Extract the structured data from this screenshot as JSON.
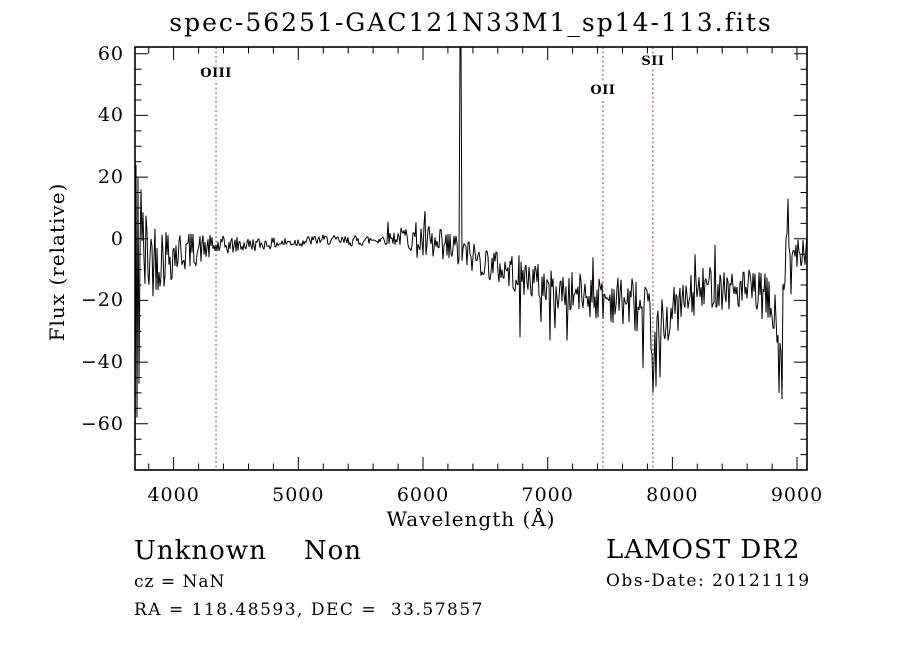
{
  "plot": {
    "title": "spec-56251-GAC121N33M1_sp14-113.fits",
    "xlabel": "Wavelength (Å)",
    "ylabel": "Flux (relative)",
    "background_color": "#ffffff",
    "axis_color": "#000000",
    "trace_color": "#000000",
    "marker_line_color": "#8a4545"
  },
  "footer": {
    "classification": "Unknown    Non",
    "cz": "cz = NaN",
    "radec": "RA = 118.48593, DEC =  33.57857",
    "survey": "LAMOST DR2",
    "obs_date": "Obs-Date: 20121119"
  },
  "chart_data": {
    "type": "line",
    "title": "spec-56251-GAC121N33M1_sp14-113.fits",
    "xlabel": "Wavelength (Å)",
    "ylabel": "Flux (relative)",
    "xlim": [
      3690,
      9080
    ],
    "ylim": [
      -75,
      62.2
    ],
    "grid": false,
    "xticks": [
      4000,
      5000,
      6000,
      7000,
      8000,
      9000
    ],
    "xtick_labels": [
      "4000",
      "5000",
      "6000",
      "7000",
      "8000",
      "9000"
    ],
    "x_minor_step": 200,
    "yticks": [
      60,
      40,
      20,
      0,
      -20,
      -40,
      -60
    ],
    "ytick_labels": [
      "60",
      "40",
      "20",
      "0",
      "−20",
      "−40",
      "−60"
    ],
    "y_minor_step": 5,
    "line_markers": [
      {
        "label": "OIII",
        "wavelength": 4340,
        "label_offset_y": 19
      },
      {
        "label": "OII",
        "wavelength": 7443,
        "label_offset_y": 36
      },
      {
        "label": "SII",
        "wavelength": 7844,
        "label_offset_y": 7
      }
    ],
    "spectrum": {
      "noise_seed": 42,
      "continuum": [
        [
          3690,
          -6
        ],
        [
          3800,
          -5.5
        ],
        [
          3950,
          -5
        ],
        [
          4100,
          -4
        ],
        [
          4250,
          -3
        ],
        [
          4450,
          -2.2
        ],
        [
          4650,
          -1.8
        ],
        [
          4850,
          -1.4
        ],
        [
          5050,
          -0.8
        ],
        [
          5200,
          -0.2
        ],
        [
          5350,
          -0.8
        ],
        [
          5550,
          -0.5
        ],
        [
          5750,
          0.3
        ],
        [
          5880,
          0.8
        ],
        [
          5960,
          -0.5
        ],
        [
          6050,
          -2.5
        ],
        [
          6150,
          -4
        ],
        [
          6250,
          -3.5
        ],
        [
          6350,
          -5
        ],
        [
          6500,
          -7.5
        ],
        [
          6650,
          -10
        ],
        [
          6800,
          -12
        ],
        [
          6950,
          -14.5
        ],
        [
          7100,
          -17
        ],
        [
          7250,
          -18
        ],
        [
          7400,
          -19
        ],
        [
          7550,
          -19.5
        ],
        [
          7700,
          -21
        ],
        [
          7790,
          -26
        ],
        [
          7860,
          -30
        ],
        [
          7930,
          -27
        ],
        [
          8020,
          -23
        ],
        [
          8120,
          -20
        ],
        [
          8230,
          -17
        ],
        [
          8330,
          -14.5
        ],
        [
          8430,
          -16
        ],
        [
          8530,
          -17
        ],
        [
          8640,
          -17
        ],
        [
          8740,
          -19
        ],
        [
          8810,
          -24
        ],
        [
          8860,
          -34
        ],
        [
          8900,
          -18
        ],
        [
          8925,
          5
        ],
        [
          8945,
          -8
        ],
        [
          8970,
          -6
        ],
        [
          9000,
          -3
        ],
        [
          9080,
          -2
        ]
      ],
      "noise_envelope": [
        [
          3690,
          26
        ],
        [
          3730,
          22
        ],
        [
          3780,
          17
        ],
        [
          3840,
          13
        ],
        [
          3920,
          11
        ],
        [
          4000,
          8.5
        ],
        [
          4080,
          7
        ],
        [
          4180,
          5.5
        ],
        [
          4300,
          4
        ],
        [
          4450,
          3
        ],
        [
          4600,
          2.3
        ],
        [
          4800,
          1.8
        ],
        [
          5000,
          1.8
        ],
        [
          5200,
          1.6
        ],
        [
          5400,
          1.8
        ],
        [
          5600,
          1.8
        ],
        [
          5750,
          2.2
        ],
        [
          5850,
          3.5
        ],
        [
          5950,
          6
        ],
        [
          6050,
          7.5
        ],
        [
          6200,
          7
        ],
        [
          6350,
          5.5
        ],
        [
          6500,
          5.5
        ],
        [
          6650,
          6
        ],
        [
          6800,
          6.5
        ],
        [
          6950,
          6.5
        ],
        [
          7100,
          6.5
        ],
        [
          7250,
          7
        ],
        [
          7400,
          7.5
        ],
        [
          7550,
          8
        ],
        [
          7700,
          9
        ],
        [
          7850,
          11
        ],
        [
          7950,
          8.5
        ],
        [
          8100,
          7.5
        ],
        [
          8250,
          7.5
        ],
        [
          8400,
          7.5
        ],
        [
          8550,
          7
        ],
        [
          8700,
          7.5
        ],
        [
          8800,
          9
        ],
        [
          8870,
          11
        ],
        [
          8930,
          9
        ],
        [
          8990,
          6
        ],
        [
          9080,
          7
        ]
      ],
      "spikes": [
        [
          3692,
          -70
        ],
        [
          3700,
          24
        ],
        [
          3708,
          -58
        ],
        [
          3717,
          20
        ],
        [
          3726,
          -47
        ],
        [
          3735,
          16
        ],
        [
          5719,
          5.5
        ],
        [
          6018,
          9
        ],
        [
          6297,
          62.2
        ],
        [
          6305,
          62.2
        ],
        [
          6780,
          -32
        ],
        [
          6950,
          -27
        ],
        [
          7020,
          -33
        ],
        [
          7060,
          -29
        ],
        [
          7155,
          -33
        ],
        [
          7365,
          -6
        ],
        [
          7765,
          -42
        ],
        [
          7845,
          -50
        ],
        [
          7870,
          -48
        ],
        [
          7900,
          -45
        ],
        [
          8180,
          -5
        ],
        [
          8340,
          -2
        ],
        [
          8855,
          -50
        ],
        [
          8878,
          -52
        ],
        [
          8925,
          13
        ],
        [
          8955,
          -18
        ],
        [
          8990,
          -2
        ]
      ]
    }
  }
}
